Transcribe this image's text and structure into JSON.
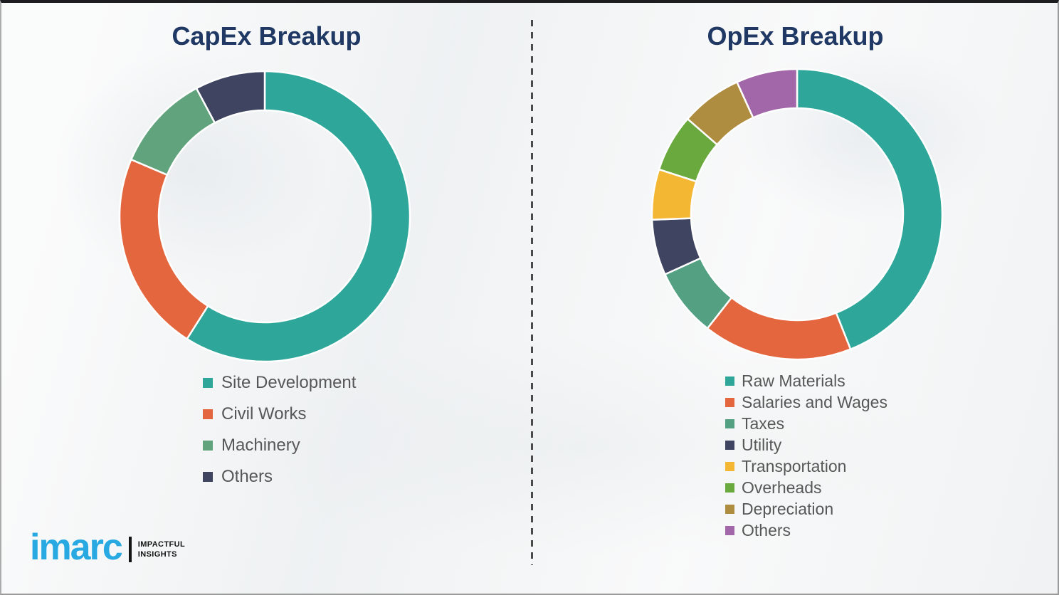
{
  "page": {
    "title_color": "#1f3864",
    "legend_text_color": "#575757",
    "divider_color": "#4a4a4a",
    "background_color": "#f2f3f4"
  },
  "chart_data": [
    {
      "type": "pie",
      "donut": true,
      "title": "CapEx Breakup",
      "start_angle": 0,
      "direction": "clockwise",
      "labels": [
        "Site Development",
        "Civil Works",
        "Machinery",
        "Others"
      ],
      "values": [
        59.0,
        22.4,
        10.8,
        7.8
      ],
      "colors": [
        "#2ea79a",
        "#e4663e",
        "#60a37d",
        "#3f4560"
      ],
      "legend_position": "below-left"
    },
    {
      "type": "pie",
      "donut": true,
      "title": "OpEx Breakup",
      "start_angle": 0,
      "direction": "clockwise",
      "labels": [
        "Raw Materials",
        "Salaries and Wages",
        "Taxes",
        "Utility",
        "Transportation",
        "Overheads",
        "Depreciation",
        "Others"
      ],
      "values": [
        44.0,
        16.6,
        7.6,
        6.2,
        5.6,
        6.4,
        6.8,
        6.8
      ],
      "colors": [
        "#2ea79a",
        "#e4663e",
        "#54a083",
        "#3f4560",
        "#f4b733",
        "#6aa93e",
        "#af8d40",
        "#a267a8"
      ],
      "legend_position": "below-left"
    }
  ],
  "logo": {
    "brand": "imarc",
    "brand_color": "#29a9e1",
    "tagline_line1": "IMPACTFUL",
    "tagline_line2": "INSIGHTS"
  }
}
